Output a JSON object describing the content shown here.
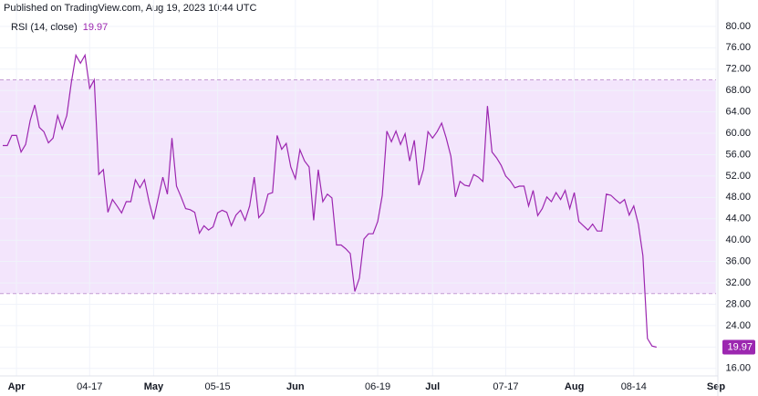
{
  "chart_data": {
    "type": "line",
    "title": "Published on TradingView.com, Aug 19, 2023 10:44 UTC",
    "x": [
      "03-29",
      "03-30",
      "03-31",
      "04-01",
      "04-02",
      "04-03",
      "04-04",
      "04-05",
      "04-06",
      "04-07",
      "04-08",
      "04-09",
      "04-10",
      "04-11",
      "04-12",
      "04-13",
      "04-14",
      "04-15",
      "04-16",
      "04-17",
      "04-18",
      "04-19",
      "04-20",
      "04-21",
      "04-22",
      "04-23",
      "04-24",
      "04-25",
      "04-26",
      "04-27",
      "04-28",
      "04-29",
      "04-30",
      "05-01",
      "05-02",
      "05-03",
      "05-04",
      "05-05",
      "05-06",
      "05-07",
      "05-08",
      "05-09",
      "05-10",
      "05-11",
      "05-12",
      "05-13",
      "05-14",
      "05-15",
      "05-16",
      "05-17",
      "05-18",
      "05-19",
      "05-20",
      "05-21",
      "05-22",
      "05-23",
      "05-24",
      "05-25",
      "05-26",
      "05-27",
      "05-28",
      "05-29",
      "05-30",
      "05-31",
      "06-01",
      "06-02",
      "06-03",
      "06-04",
      "06-05",
      "06-06",
      "06-07",
      "06-08",
      "06-09",
      "06-10",
      "06-11",
      "06-12",
      "06-13",
      "06-14",
      "06-15",
      "06-16",
      "06-17",
      "06-18",
      "06-19",
      "06-20",
      "06-21",
      "06-22",
      "06-23",
      "06-24",
      "06-25",
      "06-26",
      "06-27",
      "06-28",
      "06-29",
      "06-30",
      "07-01",
      "07-02",
      "07-03",
      "07-04",
      "07-05",
      "07-06",
      "07-07",
      "07-08",
      "07-09",
      "07-10",
      "07-11",
      "07-12",
      "07-13",
      "07-14",
      "07-15",
      "07-16",
      "07-17",
      "07-18",
      "07-19",
      "07-20",
      "07-21",
      "07-22",
      "07-23",
      "07-24",
      "07-25",
      "07-26",
      "07-27",
      "07-28",
      "07-29",
      "07-30",
      "07-31",
      "08-01",
      "08-02",
      "08-03",
      "08-04",
      "08-05",
      "08-06",
      "08-07",
      "08-08",
      "08-09",
      "08-10",
      "08-11",
      "08-12",
      "08-13",
      "08-14",
      "08-15",
      "08-16",
      "08-17",
      "08-18",
      "08-19"
    ],
    "series": [
      {
        "name": "RSI (14, close)",
        "color": "#9c27b0",
        "values": [
          57.7,
          57.7,
          59.6,
          59.6,
          56.5,
          57.9,
          62.4,
          65.3,
          61.1,
          60.3,
          58.2,
          59.1,
          63.3,
          60.8,
          63.3,
          69.5,
          74.6,
          73.1,
          74.6,
          68.4,
          70.0,
          52.3,
          53.2,
          45.2,
          47.6,
          46.4,
          45.1,
          47.2,
          47.2,
          51.3,
          49.8,
          51.3,
          47.2,
          43.9,
          47.8,
          51.8,
          48.6,
          59.1,
          50.1,
          48.1,
          45.9,
          45.7,
          45.2,
          41.3,
          42.7,
          41.9,
          42.5,
          45.1,
          45.6,
          45.2,
          42.7,
          44.7,
          45.6,
          43.7,
          46.4,
          51.8,
          44.2,
          45.2,
          48.6,
          48.9,
          59.6,
          57.0,
          58.1,
          53.7,
          51.5,
          56.9,
          54.8,
          53.7,
          43.7,
          53.2,
          47.2,
          48.6,
          47.9,
          39.1,
          39.1,
          38.4,
          37.5,
          30.4,
          32.9,
          40.2,
          41.2,
          41.2,
          43.5,
          48.4,
          60.4,
          58.4,
          60.4,
          57.9,
          59.9,
          54.8,
          58.7,
          50.3,
          53.2,
          60.3,
          59.1,
          60.3,
          61.9,
          59.1,
          55.7,
          48.1,
          51.0,
          50.3,
          50.1,
          52.3,
          51.8,
          51.0,
          65.1,
          56.5,
          55.4,
          54.0,
          52.0,
          51.1,
          49.8,
          50.1,
          50.1,
          46.4,
          49.3,
          44.6,
          45.9,
          48.1,
          47.2,
          48.9,
          47.6,
          49.3,
          45.9,
          48.9,
          43.5,
          42.7,
          41.9,
          43.0,
          41.7,
          41.7,
          48.6,
          48.4,
          47.6,
          46.9,
          47.6,
          44.7,
          46.4,
          43.0,
          37.1,
          21.6,
          20.2,
          19.97
        ]
      }
    ],
    "xlim": [
      "03-28",
      "09-01"
    ],
    "xticks": [
      {
        "value": "04-01",
        "label": "Apr"
      },
      "04-17",
      {
        "value": "05-01",
        "label": "May"
      },
      "05-15",
      {
        "value": "06-01",
        "label": "Jun"
      },
      "06-19",
      {
        "value": "07-01",
        "label": "Jul"
      },
      "07-17",
      {
        "value": "08-01",
        "label": "Aug"
      },
      "08-14",
      {
        "value": "09-01",
        "label": "Sep"
      }
    ],
    "ylim": [
      14.6,
      82.2
    ],
    "yticks": [
      {
        "value": 16,
        "label": "16.00"
      },
      {
        "value": 20,
        "label": "20.00"
      },
      {
        "value": 24,
        "label": "24.00"
      },
      {
        "value": 28,
        "label": "28.00"
      },
      {
        "value": 32,
        "label": "32.00"
      },
      {
        "value": 36,
        "label": "36.00"
      },
      {
        "value": 40,
        "label": "40.00"
      },
      {
        "value": 44,
        "label": "44.00"
      },
      {
        "value": 48,
        "label": "48.00"
      },
      {
        "value": 52,
        "label": "52.00"
      },
      {
        "value": 56,
        "label": "56.00"
      },
      {
        "value": 60,
        "label": "60.00"
      },
      {
        "value": 64,
        "label": "64.00"
      },
      {
        "value": 68,
        "label": "68.00"
      },
      {
        "value": 72,
        "label": "72.00"
      },
      {
        "value": 76,
        "label": "76.00"
      },
      {
        "value": 80,
        "label": "80.00"
      }
    ],
    "band": [
      30,
      70
    ],
    "band_color": "#f3e5fc",
    "grid": true
  }
}
